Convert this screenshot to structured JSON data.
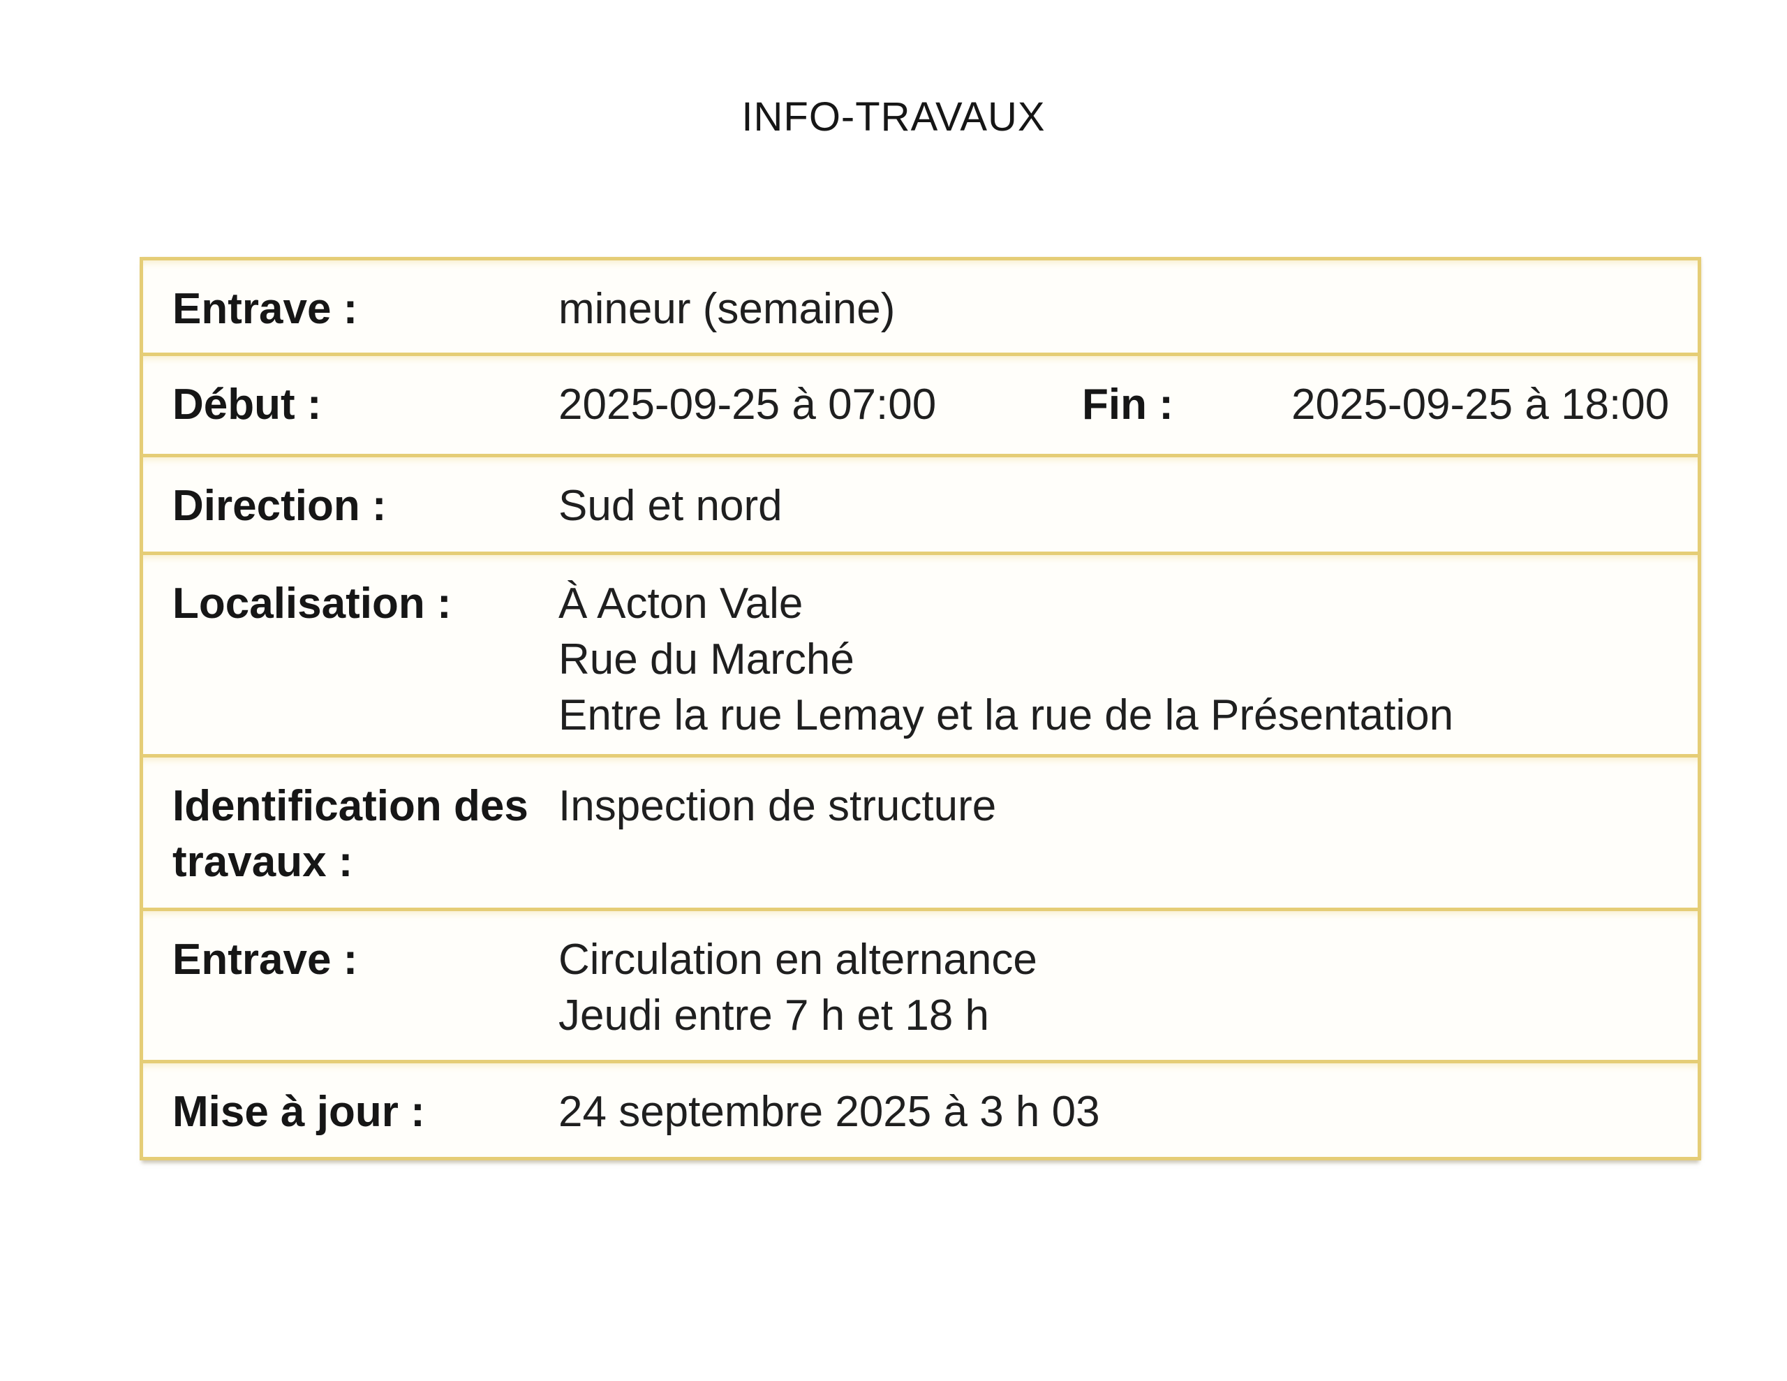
{
  "page": {
    "title": "INFO-TRAVAUX"
  },
  "colors": {
    "border_gold": "#e5cd76",
    "text": "#1b1b1b",
    "row_bg": "#fffefa",
    "page_bg": "#ffffff"
  },
  "table": {
    "rows": {
      "entrave1": {
        "label": "Entrave :",
        "value": "mineur (semaine)"
      },
      "periode": {
        "label_debut": "Début :",
        "value_debut": "2025-09-25 à 07:00",
        "label_fin": "Fin :",
        "value_fin": "2025-09-25 à 18:00"
      },
      "direction": {
        "label": "Direction :",
        "value": "Sud et nord"
      },
      "localisation": {
        "label": "Localisation :",
        "line1": "À Acton Vale",
        "line2": "Rue du Marché",
        "line3": "Entre la rue Lemay et la rue de la Présentation"
      },
      "identification": {
        "label": "Identification des travaux :",
        "value": "Inspection de structure"
      },
      "entrave2": {
        "label": "Entrave :",
        "line1": "Circulation en alternance",
        "line2": "Jeudi entre 7 h et 18 h"
      },
      "mise_a_jour": {
        "label": "Mise à jour :",
        "value": "24 septembre 2025 à 3 h 03"
      }
    }
  }
}
